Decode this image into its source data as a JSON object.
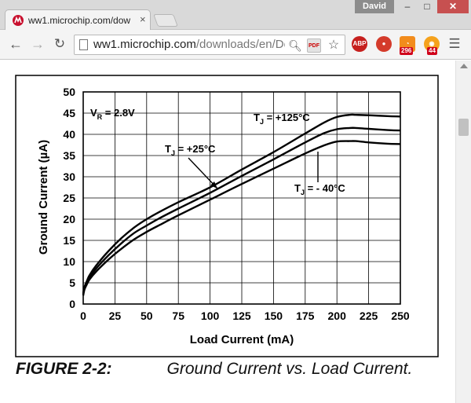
{
  "browser": {
    "tab_title": "ww1.microchip.com/dow",
    "tab_close": "×",
    "profile_name": "David",
    "window_buttons": {
      "minimize": "–",
      "maximize": "□",
      "close": "✕"
    },
    "url_host": "ww1.microchip.com",
    "url_path": "/downloads/en/Dev",
    "extensions": {
      "adblock_label": "ABP",
      "rss_badge": "296",
      "feed_badge": "44"
    }
  },
  "caption": {
    "label": "FIGURE 2-2:",
    "text": "Ground Current vs. Load Current."
  },
  "chart_data": {
    "type": "line",
    "title": "",
    "xlabel": "Load Current (mA)",
    "ylabel": "Ground Current (µA)",
    "xlim": [
      0,
      250
    ],
    "ylim": [
      0,
      50
    ],
    "x_ticks": [
      0,
      25,
      50,
      75,
      100,
      125,
      150,
      175,
      200,
      225,
      250
    ],
    "y_ticks": [
      0,
      5,
      10,
      15,
      20,
      25,
      30,
      35,
      40,
      45,
      50
    ],
    "grid": true,
    "annotations": [
      {
        "id": "vr",
        "main": "V",
        "sub": "R",
        "rest": " = 2.8V"
      },
      {
        "id": "tj125",
        "main": "T",
        "sub": "J",
        "rest": " = +125°C"
      },
      {
        "id": "tj25",
        "main": "T",
        "sub": "J",
        "rest": " = +25°C"
      },
      {
        "id": "tjm40",
        "main": "T",
        "sub": "J",
        "rest": " = - 40°C"
      }
    ],
    "series": [
      {
        "x": [
          0,
          1,
          3,
          5,
          10,
          20,
          30,
          40,
          50,
          60,
          75,
          100,
          125,
          150,
          175,
          190,
          200,
          210,
          215,
          225,
          240,
          250
        ],
        "y": [
          2.5,
          4,
          5.5,
          6.8,
          9,
          12.5,
          15.5,
          18,
          20,
          21.7,
          24,
          27.5,
          31.7,
          35.8,
          40.2,
          42.8,
          44.1,
          44.6,
          44.6,
          44.5,
          44.3,
          44.2
        ]
      },
      {
        "x": [
          0,
          1,
          3,
          5,
          10,
          20,
          30,
          40,
          50,
          60,
          75,
          100,
          125,
          150,
          175,
          190,
          200,
          210,
          215,
          225,
          240,
          250
        ],
        "y": [
          2.3,
          3.8,
          5.2,
          6.3,
          8.3,
          11.5,
          14.3,
          16.7,
          18.5,
          20.2,
          22.5,
          26.2,
          30.2,
          34.1,
          38.1,
          40.3,
          41.2,
          41.5,
          41.5,
          41.3,
          41.0,
          40.9
        ]
      },
      {
        "x": [
          0,
          1,
          3,
          5,
          10,
          20,
          30,
          40,
          50,
          60,
          75,
          100,
          125,
          150,
          175,
          190,
          200,
          210,
          215,
          225,
          240,
          250
        ],
        "y": [
          2.0,
          3.4,
          4.7,
          5.8,
          7.6,
          10.5,
          13.0,
          15.2,
          17.0,
          18.6,
          20.9,
          24.6,
          28.3,
          31.9,
          35.5,
          37.4,
          38.3,
          38.4,
          38.4,
          38.1,
          37.8,
          37.7
        ]
      }
    ]
  }
}
